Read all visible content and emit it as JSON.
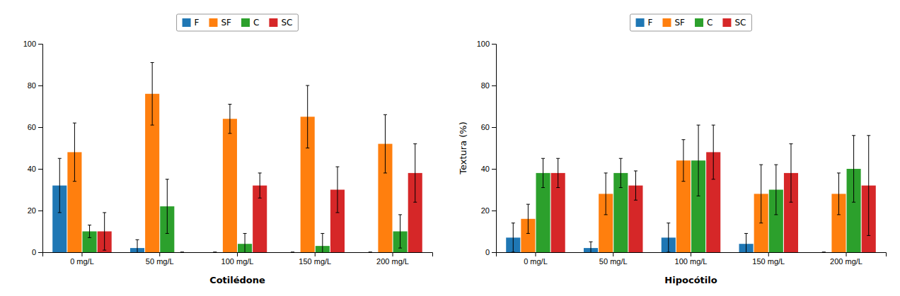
{
  "chart_data": [
    {
      "type": "bar",
      "xlabel": "Cotilédone",
      "categories": [
        "0 mg/L",
        "50 mg/L",
        "100 mg/L",
        "150 mg/L",
        "200 mg/L"
      ],
      "series": [
        {
          "name": "F",
          "values": [
            32,
            2,
            0,
            0,
            0
          ],
          "errors": [
            13,
            4,
            0,
            0,
            0
          ]
        },
        {
          "name": "SF",
          "values": [
            48,
            76,
            64,
            65,
            52
          ],
          "errors": [
            14,
            15,
            7,
            15,
            14
          ]
        },
        {
          "name": "C",
          "values": [
            10,
            22,
            4,
            3,
            10
          ],
          "errors": [
            3,
            13,
            5,
            6,
            8
          ]
        },
        {
          "name": "SC",
          "values": [
            10,
            0,
            32,
            30,
            38
          ],
          "errors": [
            9,
            0,
            6,
            11,
            14
          ]
        }
      ],
      "ylim": [
        0,
        100
      ],
      "yticks": [
        0,
        20,
        40,
        60,
        80,
        100
      ],
      "grid": false,
      "legend": "top"
    },
    {
      "type": "bar",
      "xlabel": "Hipocótilo",
      "ylabel": "Textura (%)",
      "categories": [
        "0 mg/L",
        "50 mg/L",
        "100 mg/L",
        "150 mg/L",
        "200 mg/L"
      ],
      "series": [
        {
          "name": "F",
          "values": [
            7,
            2,
            7,
            4,
            0
          ],
          "errors": [
            7,
            3,
            7,
            5,
            0
          ]
        },
        {
          "name": "SF",
          "values": [
            16,
            28,
            44,
            28,
            28
          ],
          "errors": [
            7,
            10,
            10,
            14,
            10
          ]
        },
        {
          "name": "C",
          "values": [
            38,
            38,
            44,
            30,
            40
          ],
          "errors": [
            7,
            7,
            17,
            12,
            16
          ]
        },
        {
          "name": "SC",
          "values": [
            38,
            32,
            48,
            38,
            32
          ],
          "errors": [
            7,
            7,
            13,
            14,
            24
          ]
        }
      ],
      "ylim": [
        0,
        100
      ],
      "yticks": [
        0,
        20,
        40,
        60,
        80,
        100
      ],
      "grid": false,
      "legend": "top"
    }
  ]
}
